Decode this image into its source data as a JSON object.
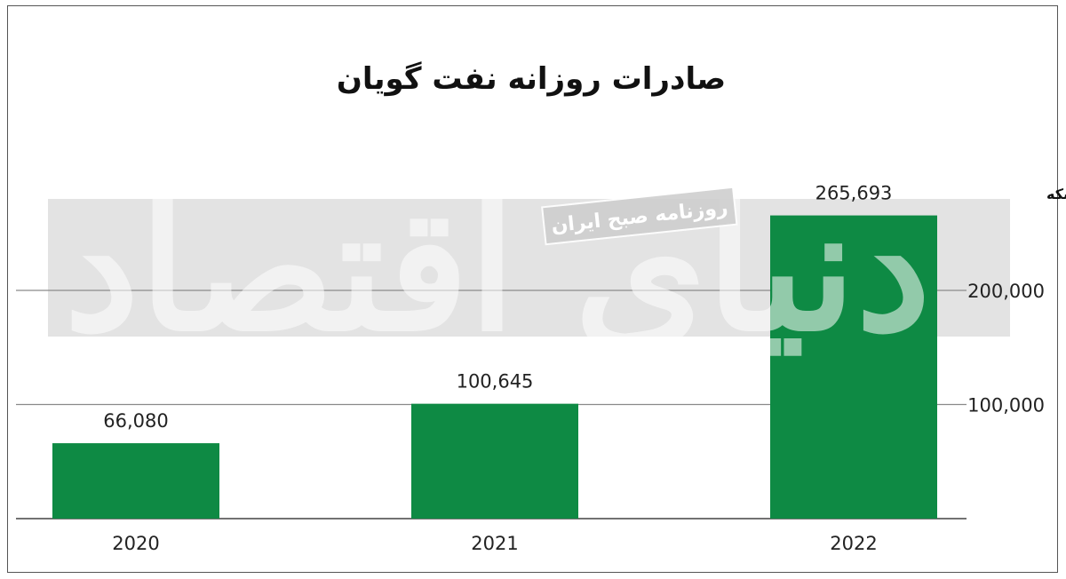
{
  "chart_data": {
    "type": "bar",
    "title": "صادرات  روزانه نفت گویان",
    "unit_label": "هزار بشکه",
    "categories": [
      "2020",
      "2021",
      "2022"
    ],
    "values": [
      66080,
      100645,
      265693
    ],
    "value_labels": [
      "66,080",
      "100,645",
      "265,693"
    ],
    "yticks": [
      100000,
      200000
    ],
    "ytick_labels": [
      "100,000",
      "200,000"
    ],
    "ylim": [
      0,
      300000
    ],
    "grid": true,
    "xlabel": "",
    "ylabel": "",
    "bar_color": "#0e8a44"
  },
  "watermark": {
    "main": "دنیای اقتصاد",
    "secondary": "روزنامه صبح ایران"
  }
}
